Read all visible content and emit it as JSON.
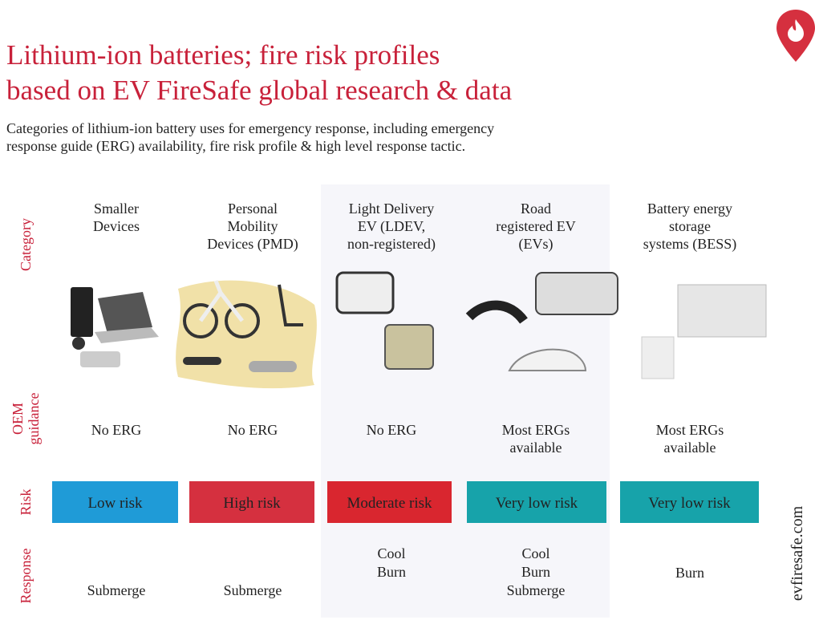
{
  "header": {
    "title_lines": [
      "Lithium-ion batteries; fire risk profiles",
      "based on EV FireSafe global research & data"
    ],
    "subtitle_lines": [
      "Categories of lithium-ion battery uses for emergency response, including emergency",
      "response guide (ERG) availability, fire risk profile & high level response tactic."
    ]
  },
  "row_labels": [
    [
      "Category"
    ],
    [
      "OEM",
      "guidance"
    ],
    [
      "Risk"
    ],
    [
      "Response"
    ]
  ],
  "columns": [
    {
      "category": [
        "Smaller",
        "Devices"
      ],
      "guidance": [
        "No ERG"
      ],
      "risk": "Low risk",
      "risk_color": "#1f9bd7",
      "response": [
        "Submerge"
      ]
    },
    {
      "category": [
        "Personal",
        "Mobility",
        "Devices (PMD)"
      ],
      "guidance": [
        "No ERG"
      ],
      "risk": "High risk",
      "risk_color": "#d5303f",
      "response": [
        "Submerge"
      ]
    },
    {
      "category": [
        "Light Delivery",
        "EV (LDEV,",
        "non-registered)"
      ],
      "guidance": [
        "No ERG"
      ],
      "risk": "Moderate risk",
      "risk_color": "#d9262f",
      "response": [
        "Cool",
        "Burn"
      ]
    },
    {
      "category": [
        "Road",
        "registered EV",
        "(EVs)"
      ],
      "guidance": [
        "Most ERGs",
        "available"
      ],
      "risk": "Very low risk",
      "risk_color": "#17a3aa",
      "response": [
        "Cool",
        "Burn",
        "Submerge"
      ]
    },
    {
      "category": [
        "Battery energy",
        "storage",
        "systems (BESS)"
      ],
      "guidance": [
        "Most ERGs",
        "available"
      ],
      "risk": "Very low risk",
      "risk_color": "#17a3aa",
      "response": [
        "Burn"
      ]
    }
  ],
  "footer": {
    "website": "evfiresafe.com"
  }
}
